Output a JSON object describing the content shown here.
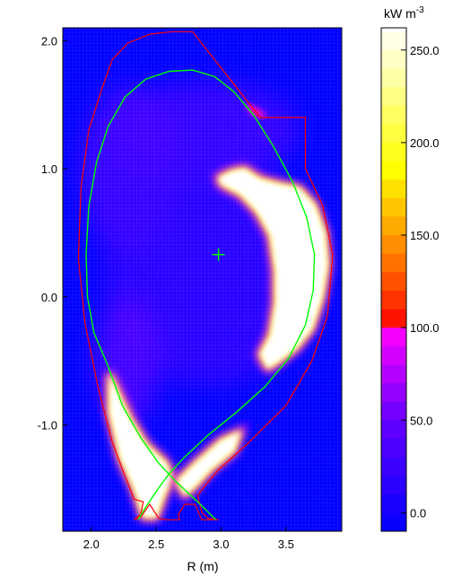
{
  "chart_data": {
    "type": "heatmap",
    "xlabel": "R (m)",
    "ylabel": "",
    "xlim": [
      1.78,
      3.93
    ],
    "ylim": [
      -1.83,
      2.1
    ],
    "x_ticks": [
      2.0,
      2.5,
      3.0,
      3.5
    ],
    "x_tick_labels": [
      "2.0",
      "2.5",
      "3.0",
      "3.5"
    ],
    "y_ticks": [
      2.0,
      1.0,
      0.0,
      -1.0
    ],
    "y_tick_labels": [
      "2.0",
      "1.0",
      "0.0",
      "-1.0"
    ],
    "colorbar": {
      "label": "kW m",
      "label_exponent": "-3",
      "range": [
        -10,
        262
      ],
      "ticks": [
        250.0,
        200.0,
        150.0,
        100.0,
        50.0,
        0.0
      ],
      "tick_labels": [
        "250.0",
        "200.0",
        "150.0",
        "100.0",
        "50.0",
        "0.0"
      ]
    },
    "colors": {
      "background": "#0000ff",
      "outer_boundary": "#ff0000",
      "separatrix": "#00ff00",
      "axis_marker": "#00ff00"
    },
    "magnetic_axis": {
      "R": 2.98,
      "Z": 0.33
    },
    "separatrix": [
      [
        2.12,
        -0.52
      ],
      [
        2.02,
        -0.28
      ],
      [
        1.97,
        0.0
      ],
      [
        1.96,
        0.33
      ],
      [
        1.98,
        0.7
      ],
      [
        2.04,
        1.05
      ],
      [
        2.13,
        1.33
      ],
      [
        2.26,
        1.56
      ],
      [
        2.42,
        1.7
      ],
      [
        2.6,
        1.76
      ],
      [
        2.78,
        1.77
      ],
      [
        2.95,
        1.72
      ],
      [
        3.1,
        1.6
      ],
      [
        3.25,
        1.42
      ],
      [
        3.4,
        1.18
      ],
      [
        3.55,
        0.9
      ],
      [
        3.66,
        0.62
      ],
      [
        3.72,
        0.33
      ],
      [
        3.71,
        0.05
      ],
      [
        3.65,
        -0.22
      ],
      [
        3.52,
        -0.48
      ],
      [
        3.34,
        -0.7
      ],
      [
        3.12,
        -0.9
      ],
      [
        2.9,
        -1.08
      ],
      [
        2.72,
        -1.25
      ],
      [
        2.6,
        -1.38
      ],
      [
        2.5,
        -1.52
      ],
      [
        2.42,
        -1.64
      ],
      [
        2.36,
        -1.74
      ]
    ],
    "x_point_legs": [
      [
        [
          2.12,
          -0.52
        ],
        [
          2.24,
          -0.85
        ],
        [
          2.38,
          -1.1
        ],
        [
          2.52,
          -1.3
        ],
        [
          2.66,
          -1.45
        ],
        [
          2.82,
          -1.6
        ],
        [
          2.96,
          -1.74
        ]
      ]
    ],
    "outer_boundary": [
      [
        2.16,
        1.85
      ],
      [
        2.28,
        1.98
      ],
      [
        2.45,
        2.05
      ],
      [
        2.62,
        2.07
      ],
      [
        2.78,
        2.07
      ],
      [
        3.3,
        1.4
      ],
      [
        3.65,
        1.4
      ],
      [
        3.65,
        1.0
      ],
      [
        3.78,
        0.72
      ],
      [
        3.86,
        0.33
      ],
      [
        3.82,
        -0.15
      ],
      [
        3.7,
        -0.5
      ],
      [
        3.5,
        -0.85
      ],
      [
        3.2,
        -1.15
      ],
      [
        2.98,
        -1.35
      ],
      [
        2.88,
        -1.47
      ],
      [
        2.82,
        -1.55
      ],
      [
        2.85,
        -1.68
      ],
      [
        2.9,
        -1.73
      ],
      [
        2.98,
        -1.74
      ],
      [
        2.85,
        -1.74
      ],
      [
        2.8,
        -1.62
      ],
      [
        2.72,
        -1.62
      ],
      [
        2.67,
        -1.7
      ],
      [
        2.68,
        -1.74
      ],
      [
        2.58,
        -1.74
      ],
      [
        2.52,
        -1.73
      ],
      [
        2.45,
        -1.62
      ],
      [
        2.38,
        -1.72
      ],
      [
        2.33,
        -1.74
      ],
      [
        2.38,
        -1.7
      ],
      [
        2.4,
        -1.6
      ],
      [
        2.33,
        -1.58
      ],
      [
        2.26,
        -1.4
      ],
      [
        2.16,
        -1.13
      ],
      [
        2.05,
        -0.7
      ],
      [
        1.95,
        -0.2
      ],
      [
        1.9,
        0.3
      ],
      [
        1.92,
        0.85
      ],
      [
        1.98,
        1.3
      ],
      [
        2.08,
        1.62
      ],
      [
        2.16,
        1.85
      ]
    ],
    "hot_regions": [
      {
        "name": "outboard-crescent",
        "peak": 262,
        "outline": [
          [
            3.08,
            0.98
          ],
          [
            3.18,
            1.0
          ],
          [
            3.3,
            0.92
          ],
          [
            3.45,
            0.88
          ],
          [
            3.6,
            0.85
          ],
          [
            3.72,
            0.72
          ],
          [
            3.8,
            0.5
          ],
          [
            3.82,
            0.25
          ],
          [
            3.78,
            0.0
          ],
          [
            3.7,
            -0.25
          ],
          [
            3.58,
            -0.4
          ],
          [
            3.45,
            -0.5
          ],
          [
            3.36,
            -0.56
          ],
          [
            3.3,
            -0.45
          ],
          [
            3.38,
            -0.3
          ],
          [
            3.42,
            -0.05
          ],
          [
            3.42,
            0.2
          ],
          [
            3.38,
            0.48
          ],
          [
            3.28,
            0.66
          ],
          [
            3.15,
            0.8
          ],
          [
            3.0,
            0.88
          ],
          [
            2.98,
            0.93
          ],
          [
            3.08,
            0.98
          ]
        ]
      },
      {
        "name": "inner-divertor-leg",
        "peak": 262,
        "outline": [
          [
            2.14,
            -0.6
          ],
          [
            2.3,
            -0.95
          ],
          [
            2.42,
            -1.15
          ],
          [
            2.58,
            -1.3
          ],
          [
            2.62,
            -1.42
          ],
          [
            2.56,
            -1.55
          ],
          [
            2.5,
            -1.72
          ],
          [
            2.4,
            -1.72
          ],
          [
            2.33,
            -1.5
          ],
          [
            2.22,
            -1.25
          ],
          [
            2.14,
            -0.9
          ],
          [
            2.14,
            -0.6
          ]
        ]
      },
      {
        "name": "outer-divertor-leg",
        "peak": 262,
        "outline": [
          [
            2.66,
            -1.44
          ],
          [
            2.8,
            -1.3
          ],
          [
            3.0,
            -1.12
          ],
          [
            3.15,
            -1.05
          ],
          [
            3.1,
            -1.2
          ],
          [
            2.92,
            -1.35
          ],
          [
            2.8,
            -1.48
          ],
          [
            2.72,
            -1.55
          ],
          [
            2.66,
            -1.44
          ]
        ]
      },
      {
        "name": "top-hot-spot",
        "peak": 100,
        "outline": [
          [
            3.2,
            1.5
          ],
          [
            3.28,
            1.47
          ],
          [
            3.34,
            1.42
          ],
          [
            3.3,
            1.4
          ],
          [
            3.22,
            1.44
          ],
          [
            3.2,
            1.5
          ]
        ]
      }
    ],
    "warm_regions": [
      {
        "name": "upper-inboard-lobe",
        "level": 35,
        "center": [
          2.3,
          1.0
        ],
        "radius": [
          0.38,
          0.65
        ]
      },
      {
        "name": "upper-halo",
        "level": 30,
        "center": [
          2.9,
          1.3
        ],
        "radius": [
          0.7,
          0.38
        ]
      },
      {
        "name": "center-ring",
        "level": 22,
        "center": [
          2.9,
          0.2
        ],
        "radius": [
          0.8,
          0.9
        ]
      },
      {
        "name": "lower-inboard",
        "level": 40,
        "center": [
          2.28,
          -0.5
        ],
        "radius": [
          0.25,
          0.5
        ]
      }
    ]
  }
}
